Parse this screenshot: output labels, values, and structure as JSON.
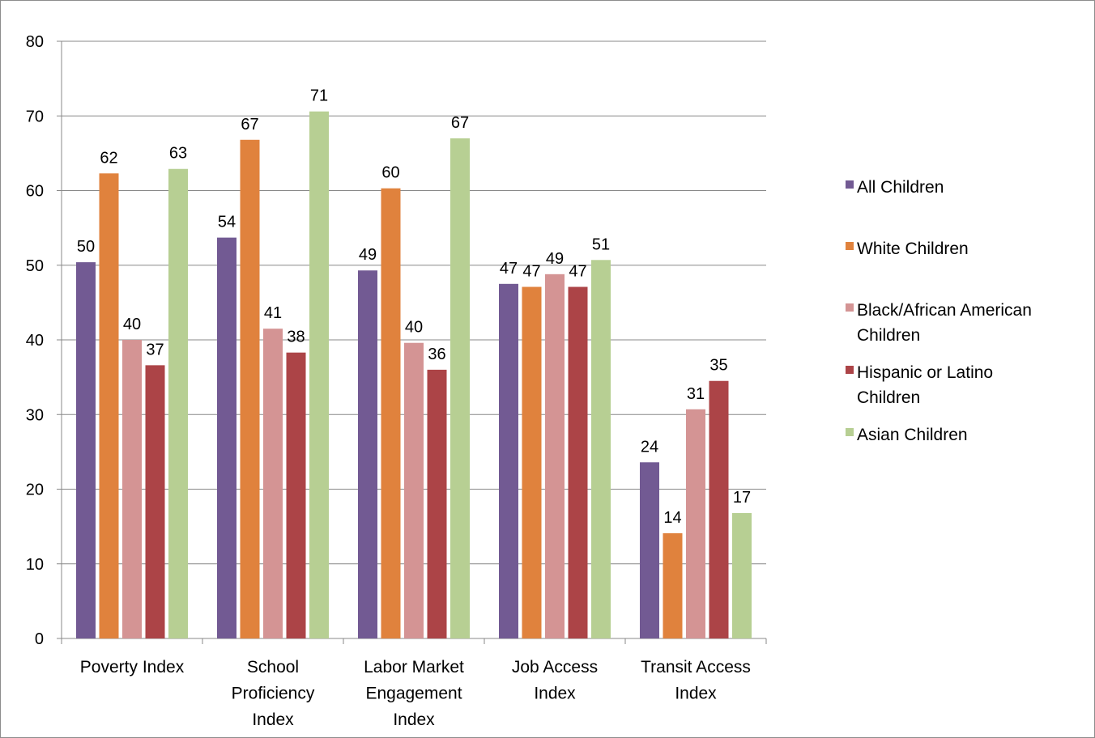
{
  "chart_data": {
    "type": "bar",
    "title": "",
    "xlabel": "",
    "ylabel": "",
    "ylim": [
      0,
      80
    ],
    "ytick_step": 10,
    "grid": true,
    "legend_position": "right",
    "categories": [
      [
        "Poverty Index"
      ],
      [
        "School",
        "Proficiency",
        "Index"
      ],
      [
        "Labor Market",
        "Engagement",
        "Index"
      ],
      [
        "Job Access",
        "Index"
      ],
      [
        "Transit Access",
        "Index"
      ]
    ],
    "series": [
      {
        "name": "All Children",
        "legend_lines": [
          "All Children"
        ],
        "color": "#725a93",
        "values": [
          50.4,
          53.7,
          49.3,
          47.5,
          23.6
        ],
        "labels": [
          "50",
          "54",
          "49",
          "47",
          "24"
        ]
      },
      {
        "name": "White Children",
        "legend_lines": [
          "White Children"
        ],
        "color": "#e0823d",
        "values": [
          62.3,
          66.8,
          60.3,
          47.1,
          14.1
        ],
        "labels": [
          "62",
          "67",
          "60",
          "47",
          "14"
        ]
      },
      {
        "name": "Black/African American Children",
        "legend_lines": [
          "Black/African American",
          "Children"
        ],
        "color": "#d49494",
        "values": [
          40.0,
          41.5,
          39.6,
          48.8,
          30.7
        ],
        "labels": [
          "40",
          "41",
          "40",
          "49",
          "31"
        ]
      },
      {
        "name": "Hispanic or Latino Children",
        "legend_lines": [
          "Hispanic or Latino",
          "Children"
        ],
        "color": "#ac4447",
        "values": [
          36.6,
          38.3,
          36.0,
          47.1,
          34.5
        ],
        "labels": [
          "37",
          "38",
          "36",
          "47",
          "35"
        ]
      },
      {
        "name": "Asian Children",
        "legend_lines": [
          "Asian Children"
        ],
        "color": "#b7cf93",
        "values": [
          62.9,
          70.6,
          67.0,
          50.7,
          16.8
        ],
        "labels": [
          "63",
          "71",
          "67",
          "51",
          "17"
        ]
      }
    ]
  }
}
